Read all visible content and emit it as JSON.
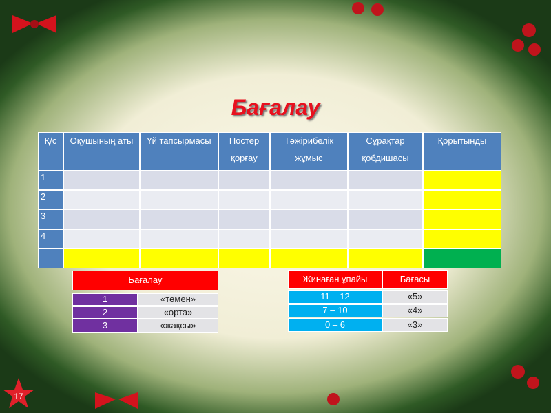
{
  "header": {
    "title": "Бағалау"
  },
  "table": {
    "columns": [
      "Қ/с",
      "Оқушының аты",
      "Үй тапсырмасы",
      "Постер қорғау",
      "Тәжірибелік жұмыс",
      "Сұрақтар қобдишасы",
      "Қорытынды"
    ],
    "rows": [
      "1",
      "2",
      "3",
      "4"
    ]
  },
  "grading": {
    "title": "Бағалау",
    "rows": [
      [
        "1",
        "«төмен»"
      ],
      [
        "2",
        "«орта»"
      ],
      [
        "3",
        "«жақсы»"
      ]
    ]
  },
  "scores": {
    "columns": [
      "Жинаған ұпайы",
      "Бағасы"
    ],
    "rows": [
      [
        "11 – 12",
        "«5»"
      ],
      [
        "7 – 10",
        "«4»"
      ],
      [
        "0 – 6",
        "«3»"
      ]
    ]
  },
  "slide_number": "17"
}
